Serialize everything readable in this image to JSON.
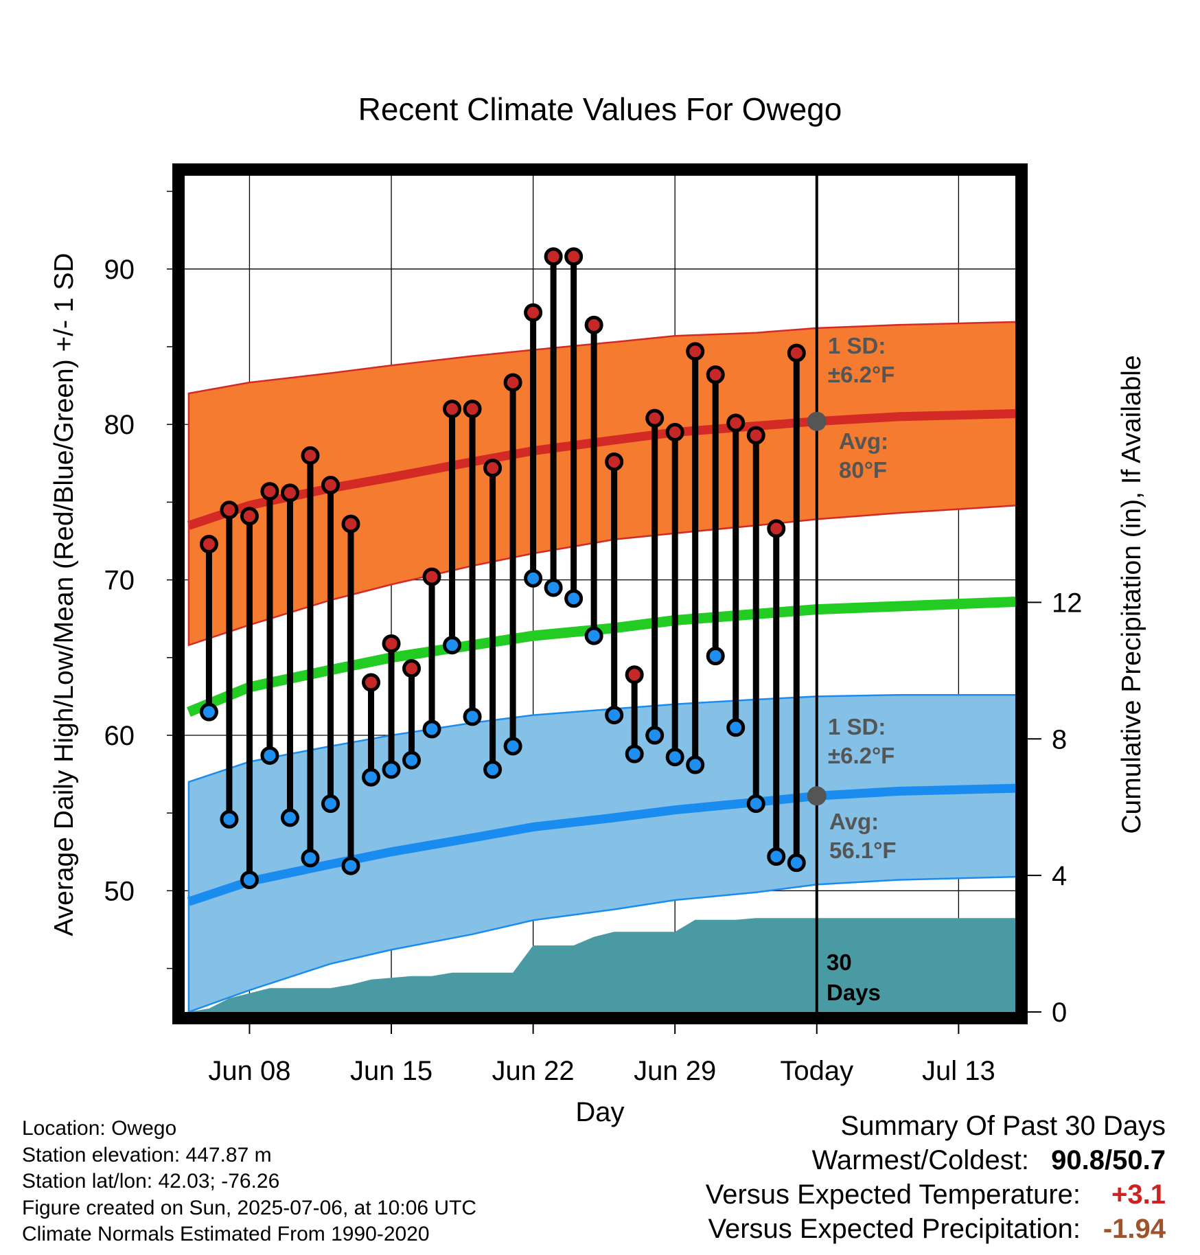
{
  "title": "Recent Climate Values For Owego",
  "xlabel": "Day",
  "ylabel_left": "Average Daily High/Low/Mean (Red/Blue/Green) +/- 1 SD",
  "ylabel_right": "Cumulative Precipitation (in), If Available",
  "annotations": {
    "high_sd_line1": "1 SD:",
    "high_sd_line2": "±6.2°F",
    "high_avg_line1": "Avg:",
    "high_avg_line2": "80°F",
    "low_sd_line1": "1 SD:",
    "low_sd_line2": "±6.2°F",
    "low_avg_line1": "Avg:",
    "low_avg_line2": "56.1°F",
    "days_line1": "30",
    "days_line2": "Days"
  },
  "footer": {
    "location": "Location: Owego",
    "elevation": "Station elevation: 447.87 m",
    "latlon": "Station lat/lon: 42.03; -76.26",
    "created": "Figure created on Sun, 2025-07-06, at 10:06 UTC",
    "normals": "Climate Normals Estimated From 1990-2020"
  },
  "summary": {
    "heading": "Summary Of Past 30 Days",
    "warmest_label": "Warmest/Coldest:",
    "warmest_value": "90.8/50.7",
    "temp_label": "Versus Expected Temperature:",
    "temp_value": "+3.1",
    "precip_label": "Versus Expected Precipitation:",
    "precip_value": "-1.94"
  },
  "colors": {
    "high_band": "#f47b2f",
    "high_mean": "#d42a25",
    "low_band": "#85c1e6",
    "low_mean": "#1a8cf0",
    "mean_line": "#22cc22",
    "precip_fill": "#4a9aa4",
    "high_dot": "#c62828",
    "low_dot": "#1e8ef0",
    "annotation": "#555555",
    "temp_anomaly": "#cc2222",
    "precip_anomaly": "#a0522d"
  },
  "chart_data": {
    "type": "line",
    "x_tick_labels": [
      "Jun 08",
      "Jun 15",
      "Jun 22",
      "Jun 29",
      "Today",
      "Jul 13"
    ],
    "x_tick_days": [
      8,
      15,
      22,
      29,
      36,
      43
    ],
    "xlim_days": [
      4.8,
      45.8
    ],
    "today_day": 36,
    "ylim": [
      42.2,
      96.0
    ],
    "y_ticks": [
      50,
      60,
      70,
      80,
      90
    ],
    "y2_ticks": [
      0,
      4,
      8,
      12
    ],
    "y2_lim": [
      0,
      24.5
    ],
    "grid": true,
    "normals": {
      "days": [
        5,
        8,
        12,
        15,
        19,
        22,
        26,
        29,
        33,
        36,
        40,
        46
      ],
      "high_mean": [
        73.5,
        74.8,
        75.9,
        76.6,
        77.6,
        78.3,
        79.0,
        79.5,
        79.9,
        80.2,
        80.5,
        80.7
      ],
      "high_upper": [
        82.0,
        82.7,
        83.3,
        83.8,
        84.4,
        84.8,
        85.3,
        85.7,
        85.9,
        86.2,
        86.4,
        86.6
      ],
      "high_lower": [
        65.8,
        67.1,
        68.7,
        69.7,
        70.9,
        71.7,
        72.6,
        73.0,
        73.5,
        73.9,
        74.3,
        74.8
      ],
      "mean": [
        61.5,
        63.1,
        64.2,
        65.0,
        65.8,
        66.4,
        66.9,
        67.4,
        67.8,
        68.1,
        68.3,
        68.6
      ],
      "low_mean": [
        49.3,
        50.6,
        51.7,
        52.5,
        53.4,
        54.1,
        54.7,
        55.2,
        55.7,
        56.1,
        56.4,
        56.6
      ],
      "low_upper": [
        57.0,
        58.3,
        59.3,
        60.0,
        60.8,
        61.3,
        61.7,
        62.0,
        62.3,
        62.5,
        62.6,
        62.6
      ],
      "low_lower": [
        42.2,
        43.6,
        45.3,
        46.2,
        47.2,
        48.1,
        48.8,
        49.4,
        49.9,
        50.4,
        50.7,
        50.9
      ]
    },
    "series": [
      {
        "name": "High",
        "days": [
          6,
          7,
          8,
          9,
          10,
          11,
          12,
          13,
          14,
          15,
          16,
          17,
          18,
          19,
          20,
          21,
          22,
          23,
          24,
          25,
          26,
          27,
          28,
          29,
          30,
          31,
          32,
          33,
          34,
          35
        ],
        "values": [
          72.3,
          74.5,
          74.1,
          75.7,
          75.6,
          78.0,
          76.1,
          73.6,
          63.4,
          65.9,
          64.3,
          70.2,
          81.0,
          81.0,
          77.2,
          82.7,
          87.2,
          90.8,
          90.8,
          86.4,
          77.6,
          63.9,
          80.4,
          79.5,
          84.7,
          83.2,
          80.1,
          79.3,
          73.3,
          84.6
        ]
      },
      {
        "name": "Low",
        "days": [
          6,
          7,
          8,
          9,
          10,
          11,
          12,
          13,
          14,
          15,
          16,
          17,
          18,
          19,
          20,
          21,
          22,
          23,
          24,
          25,
          26,
          27,
          28,
          29,
          30,
          31,
          32,
          33,
          34,
          35
        ],
        "values": [
          61.5,
          54.6,
          50.7,
          58.7,
          54.7,
          52.1,
          55.6,
          51.6,
          57.3,
          57.8,
          58.4,
          60.4,
          65.8,
          61.2,
          57.8,
          59.3,
          70.1,
          69.5,
          68.8,
          66.4,
          61.3,
          58.8,
          60.0,
          58.6,
          58.1,
          65.1,
          60.5,
          55.6,
          52.2,
          51.8
        ]
      },
      {
        "name": "Cumulative Precipitation",
        "days": [
          5,
          6,
          7,
          8,
          9,
          10,
          11,
          12,
          13,
          14,
          15,
          16,
          17,
          18,
          19,
          20,
          21,
          22,
          23,
          24,
          25,
          26,
          27,
          28,
          29,
          30,
          31,
          32,
          33,
          34,
          35,
          36,
          46
        ],
        "values": [
          0,
          0.1,
          0.4,
          0.55,
          0.7,
          0.7,
          0.7,
          0.7,
          0.8,
          0.95,
          1.0,
          1.05,
          1.05,
          1.15,
          1.15,
          1.15,
          1.15,
          1.95,
          1.95,
          1.95,
          2.2,
          2.35,
          2.35,
          2.35,
          2.35,
          2.7,
          2.7,
          2.7,
          2.75,
          2.75,
          2.75,
          2.75,
          2.75
        ]
      }
    ]
  }
}
